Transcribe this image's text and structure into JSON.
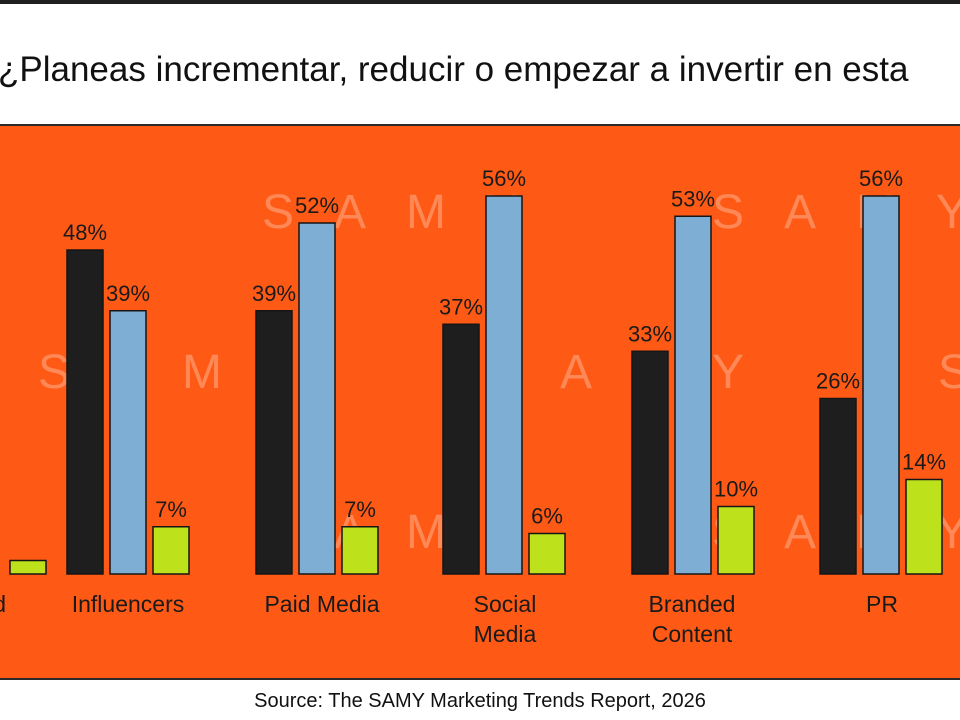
{
  "title": "¿Planeas incrementar, reducir o empezar a invertir en esta",
  "source": "Source: The SAMY Marketing Trends Report, 2026",
  "watermark": "SAMY",
  "colors": {
    "background": "#fe5a16",
    "series": [
      "#1e1e1e",
      "#7eaed4",
      "#bde21c"
    ]
  },
  "chart_data": {
    "type": "bar",
    "categories": [
      "d",
      "Influencers",
      "Paid Media",
      "Social Media",
      "Branded Content",
      "PR"
    ],
    "category_lines": [
      [
        "d"
      ],
      [
        "Influencers"
      ],
      [
        "Paid Media"
      ],
      [
        "Social",
        "Media"
      ],
      [
        "Branded",
        "Content"
      ],
      [
        "PR"
      ]
    ],
    "series": [
      {
        "values": [
          null,
          48,
          39,
          37,
          33,
          26
        ],
        "labels": [
          "",
          "48%",
          "39%",
          "37%",
          "33%",
          "26%"
        ]
      },
      {
        "values": [
          null,
          39,
          52,
          56,
          53,
          56
        ],
        "labels": [
          "",
          "39%",
          "52%",
          "56%",
          "53%",
          "56%"
        ]
      },
      {
        "values": [
          2,
          7,
          7,
          6,
          10,
          14
        ],
        "labels": [
          "",
          "7%",
          "7%",
          "6%",
          "10%",
          "14%"
        ]
      }
    ],
    "ylim": [
      0,
      60
    ],
    "grid": false,
    "legend": "none"
  }
}
